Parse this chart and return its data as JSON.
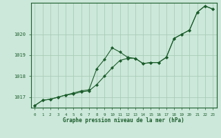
{
  "title": "Graphe pression niveau de la mer (hPa)",
  "background_color": "#cce8da",
  "grid_color": "#aaccb8",
  "line_color": "#1a5c2a",
  "ylim": [
    1016.5,
    1021.5
  ],
  "xlim": [
    -0.5,
    23.5
  ],
  "yticks": [
    1017,
    1018,
    1019,
    1020
  ],
  "xticks": [
    0,
    1,
    2,
    3,
    4,
    5,
    6,
    7,
    8,
    9,
    10,
    11,
    12,
    13,
    14,
    15,
    16,
    17,
    18,
    19,
    20,
    21,
    22,
    23
  ],
  "upper_y": [
    1016.6,
    1016.85,
    1016.9,
    1017.0,
    1017.1,
    1017.2,
    1017.3,
    1017.35,
    1018.35,
    1018.8,
    1019.35,
    1019.15,
    1018.9,
    1018.85,
    1018.6,
    1018.65,
    1018.65,
    1018.9,
    1019.8,
    1020.0,
    1020.2,
    1021.05,
    1021.35,
    1021.2
  ],
  "lower_y": [
    1016.6,
    1016.85,
    1016.9,
    1017.0,
    1017.1,
    1017.15,
    1017.25,
    1017.3,
    1017.6,
    1018.0,
    1018.4,
    1018.75,
    1018.85,
    1018.85,
    1018.6,
    1018.65,
    1018.65,
    1018.9,
    1019.8,
    1020.0,
    1020.2,
    1021.05,
    1021.35,
    1021.2
  ]
}
